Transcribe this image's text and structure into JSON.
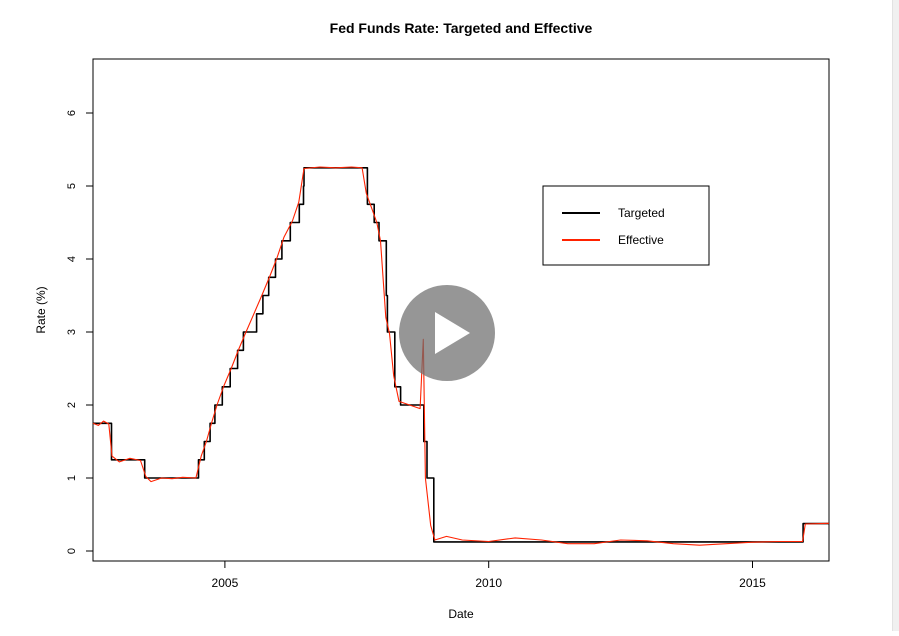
{
  "chart_data": {
    "type": "line",
    "title": "Fed Funds Rate: Targeted and Effective",
    "xlabel": "Date",
    "ylabel": "Rate (%)",
    "xlim": [
      2002.5,
      2016.45
    ],
    "ylim": [
      0,
      6.5
    ],
    "x_ticks": [
      2005,
      2010,
      2015
    ],
    "x_tick_labels": [
      "2005",
      "2010",
      "2015"
    ],
    "y_ticks": [
      0,
      1,
      2,
      3,
      4,
      5,
      6
    ],
    "y_tick_labels": [
      "0",
      "1",
      "2",
      "3",
      "4",
      "5",
      "6"
    ],
    "legend_position": "top-right",
    "series": [
      {
        "name": "Targeted",
        "color": "#000000",
        "step": true,
        "points": [
          [
            2002.5,
            1.75
          ],
          [
            2002.85,
            1.25
          ],
          [
            2003.48,
            1.0
          ],
          [
            2004.5,
            1.25
          ],
          [
            2004.61,
            1.5
          ],
          [
            2004.72,
            1.75
          ],
          [
            2004.81,
            2.0
          ],
          [
            2004.95,
            2.25
          ],
          [
            2005.1,
            2.5
          ],
          [
            2005.24,
            2.75
          ],
          [
            2005.35,
            3.0
          ],
          [
            2005.6,
            3.25
          ],
          [
            2005.72,
            3.5
          ],
          [
            2005.83,
            3.75
          ],
          [
            2005.96,
            4.0
          ],
          [
            2006.08,
            4.25
          ],
          [
            2006.24,
            4.5
          ],
          [
            2006.41,
            4.75
          ],
          [
            2006.49,
            5.0
          ],
          [
            2006.5,
            5.25
          ],
          [
            2007.7,
            4.75
          ],
          [
            2007.83,
            4.5
          ],
          [
            2007.92,
            4.25
          ],
          [
            2008.06,
            3.5
          ],
          [
            2008.08,
            3.0
          ],
          [
            2008.22,
            2.25
          ],
          [
            2008.33,
            2.0
          ],
          [
            2008.77,
            1.5
          ],
          [
            2008.83,
            1.0
          ],
          [
            2008.96,
            0.125
          ],
          [
            2015.96,
            0.375
          ],
          [
            2016.45,
            0.375
          ]
        ]
      },
      {
        "name": "Effective",
        "color": "#ff2200",
        "step": false,
        "points": [
          [
            2002.5,
            1.75
          ],
          [
            2002.6,
            1.72
          ],
          [
            2002.7,
            1.78
          ],
          [
            2002.8,
            1.74
          ],
          [
            2002.86,
            1.3
          ],
          [
            2003.0,
            1.22
          ],
          [
            2003.2,
            1.27
          ],
          [
            2003.4,
            1.24
          ],
          [
            2003.5,
            1.02
          ],
          [
            2003.6,
            0.95
          ],
          [
            2003.8,
            1.0
          ],
          [
            2004.0,
            0.99
          ],
          [
            2004.2,
            1.01
          ],
          [
            2004.45,
            1.0
          ],
          [
            2004.55,
            1.3
          ],
          [
            2004.65,
            1.5
          ],
          [
            2004.75,
            1.76
          ],
          [
            2004.85,
            2.0
          ],
          [
            2004.98,
            2.26
          ],
          [
            2005.12,
            2.5
          ],
          [
            2005.26,
            2.76
          ],
          [
            2005.4,
            3.0
          ],
          [
            2005.55,
            3.25
          ],
          [
            2005.7,
            3.5
          ],
          [
            2005.85,
            3.76
          ],
          [
            2005.98,
            4.0
          ],
          [
            2006.12,
            4.3
          ],
          [
            2006.28,
            4.52
          ],
          [
            2006.4,
            4.78
          ],
          [
            2006.5,
            5.24
          ],
          [
            2006.8,
            5.26
          ],
          [
            2007.1,
            5.25
          ],
          [
            2007.4,
            5.26
          ],
          [
            2007.6,
            5.25
          ],
          [
            2007.68,
            4.9
          ],
          [
            2007.78,
            4.7
          ],
          [
            2007.88,
            4.5
          ],
          [
            2007.95,
            4.25
          ],
          [
            2008.05,
            3.2
          ],
          [
            2008.12,
            2.98
          ],
          [
            2008.2,
            2.4
          ],
          [
            2008.3,
            2.05
          ],
          [
            2008.5,
            2.0
          ],
          [
            2008.7,
            1.95
          ],
          [
            2008.76,
            2.9
          ],
          [
            2008.8,
            1.0
          ],
          [
            2008.9,
            0.35
          ],
          [
            2008.98,
            0.15
          ],
          [
            2009.2,
            0.2
          ],
          [
            2009.5,
            0.15
          ],
          [
            2010.0,
            0.13
          ],
          [
            2010.5,
            0.18
          ],
          [
            2011.0,
            0.15
          ],
          [
            2011.5,
            0.1
          ],
          [
            2012.0,
            0.1
          ],
          [
            2012.5,
            0.15
          ],
          [
            2013.0,
            0.14
          ],
          [
            2013.5,
            0.1
          ],
          [
            2014.0,
            0.08
          ],
          [
            2014.5,
            0.1
          ],
          [
            2015.0,
            0.12
          ],
          [
            2015.5,
            0.13
          ],
          [
            2015.95,
            0.13
          ],
          [
            2016.0,
            0.37
          ],
          [
            2016.45,
            0.38
          ]
        ]
      }
    ]
  }
}
